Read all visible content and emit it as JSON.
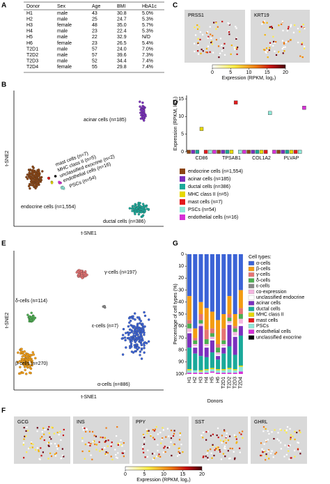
{
  "panel_labels": [
    "A",
    "B",
    "C",
    "D",
    "E",
    "F",
    "G"
  ],
  "table": {
    "header": [
      "Donor",
      "Sex",
      "Age",
      "BMI",
      "HbA1c"
    ],
    "rows": [
      {
        "cells": [
          "H1",
          "male",
          "43",
          "30.8",
          "5.0%"
        ],
        "color": "#000000"
      },
      {
        "cells": [
          "H2",
          "male",
          "25",
          "24.7",
          "5.3%"
        ],
        "color": "#000000"
      },
      {
        "cells": [
          "H3",
          "female",
          "48",
          "35.0",
          "5.7%"
        ],
        "color": "#000000"
      },
      {
        "cells": [
          "H4",
          "male",
          "23",
          "22.4",
          "5.3%"
        ],
        "color": "#000000"
      },
      {
        "cells": [
          "H5",
          "male",
          "22",
          "32.9",
          "N/D"
        ],
        "color": "#000000"
      },
      {
        "cells": [
          "H6",
          "female",
          "23",
          "26.5",
          "5.4%"
        ],
        "color": "#000000"
      },
      {
        "cells": [
          "T2D1",
          "male",
          "57",
          "24.0",
          "7.0%"
        ],
        "color": "#e8302a"
      },
      {
        "cells": [
          "T2D2",
          "male",
          "57",
          "39.6",
          "7.3%"
        ],
        "color": "#e8302a"
      },
      {
        "cells": [
          "T2D3",
          "male",
          "52",
          "34.4",
          "7.4%"
        ],
        "color": "#e8302a"
      },
      {
        "cells": [
          "T2D4",
          "female",
          "55",
          "29.8",
          "7.4%"
        ],
        "color": "#e8302a"
      }
    ]
  },
  "chart_data": [
    {
      "type": "embedding",
      "xlabel": "t-SNE1",
      "ylabel": "t-SNE2",
      "clusters": [
        {
          "label": "acinar cells (n=185)",
          "color": "#7b2fbe"
        },
        {
          "label": "mast cells (n=7)",
          "color": "#e31a1c"
        },
        {
          "label": "MHC class II (n=5)",
          "color": "#e6d800"
        },
        {
          "label": "unclassified exocrine (n=2)",
          "color": "#000000"
        },
        {
          "label": "endothelial cells (n=16)",
          "color": "#d62fd6"
        },
        {
          "label": "PSCs (n=54)",
          "color": "#8fe8d8"
        },
        {
          "label": "endocrine cells (n=1,554)",
          "color": "#8b4513"
        },
        {
          "label": "ductal cells (n=386)",
          "color": "#1aa99a"
        }
      ]
    },
    {
      "type": "feature",
      "panels": [
        "PRSS1",
        "KRT19"
      ],
      "colorbar": {
        "label": "Expression (RPKM, log₂)",
        "lim": [
          0,
          20
        ],
        "ticks": [
          0,
          5,
          10,
          15,
          20
        ]
      }
    },
    {
      "type": "dot",
      "categories": [
        "CD86",
        "TPSAB1",
        "COL1A2",
        "PLVAP"
      ],
      "ylabel": "Expression (RPKM, log₂)",
      "ylim": [
        0,
        16
      ],
      "yticks": [
        0,
        5,
        10,
        15
      ],
      "series": [
        {
          "name": "endocrine cells (n=1,554)",
          "color": "#8b4513",
          "values": [
            0,
            0,
            0,
            0
          ]
        },
        {
          "name": "acinar cells (n=185)",
          "color": "#7b2fbe",
          "values": [
            0,
            0,
            0,
            0
          ]
        },
        {
          "name": "ductal cells (n=386)",
          "color": "#1aa99a",
          "values": [
            0,
            0,
            0,
            0
          ]
        },
        {
          "name": "MHC class II (n=5)",
          "color": "#e6d800",
          "values": [
            6.5,
            0,
            0,
            0
          ]
        },
        {
          "name": "mast cells (n=7)",
          "color": "#e31a1c",
          "values": [
            0,
            14,
            0,
            0
          ]
        },
        {
          "name": "PSCs (n=54)",
          "color": "#8fe8d8",
          "values": [
            0,
            0,
            11,
            0
          ]
        },
        {
          "name": "endothelial cells (n=16)",
          "color": "#d62fd6",
          "values": [
            0,
            0,
            0,
            12.5
          ]
        }
      ]
    },
    {
      "type": "embedding",
      "xlabel": "t-SNE1",
      "ylabel": "t-SNE2",
      "clusters": [
        {
          "label": "γ-cells (n=197)",
          "color": "#e57373"
        },
        {
          "label": "δ-cells (n=114)",
          "color": "#4caf50"
        },
        {
          "label": "ε-cells (n=7)",
          "color": "#888888"
        },
        {
          "label": "β-cells (n=270)",
          "color": "#f39c12"
        },
        {
          "label": "α-cells (n=886)",
          "color": "#3b63d6"
        }
      ]
    },
    {
      "type": "feature",
      "panels": [
        "GCG",
        "INS",
        "PPY",
        "SST",
        "GHRL"
      ],
      "colorbar": {
        "label": "Expression (RPKM, log₂)",
        "lim": [
          0,
          20
        ],
        "ticks": [
          0,
          5,
          10,
          15,
          20
        ]
      }
    },
    {
      "type": "stacked-bar",
      "categories": [
        "H1",
        "H2",
        "H3",
        "H4",
        "H5",
        "H6",
        "T2D1",
        "T2D2",
        "T2D3",
        "T2D4"
      ],
      "xlabel": "Donors",
      "ylabel": "Percentage of cell types (%)",
      "legend_title": "Cell types:",
      "ylim": [
        0,
        100
      ],
      "yticks": [
        0,
        10,
        20,
        30,
        40,
        50,
        60,
        70,
        80,
        90,
        100
      ],
      "y_inverted": true,
      "series": [
        {
          "name": "α-cells",
          "color": "#3b63d6",
          "values": [
            35,
            62,
            40,
            45,
            48,
            55,
            50,
            35,
            50,
            30
          ]
        },
        {
          "name": "β-cells",
          "color": "#f39c12",
          "values": [
            20,
            8,
            10,
            18,
            14,
            20,
            12,
            15,
            10,
            15
          ]
        },
        {
          "name": "γ-cells",
          "color": "#e57373",
          "values": [
            3,
            2,
            5,
            8,
            4,
            3,
            10,
            3,
            2,
            5
          ]
        },
        {
          "name": "δ-cells",
          "color": "#4caf50",
          "values": [
            4,
            3,
            3,
            4,
            3,
            4,
            3,
            3,
            3,
            4
          ]
        },
        {
          "name": "ε-cells",
          "color": "#888888",
          "values": [
            0,
            0,
            0,
            0,
            0,
            0,
            0,
            0,
            0,
            0
          ]
        },
        {
          "name": "co-expression",
          "color": "#f4b6e0",
          "values": [
            3,
            2,
            2,
            2,
            2,
            2,
            2,
            2,
            3,
            4
          ]
        },
        {
          "name": "unclassified endocrine",
          "color": "#ffffff",
          "values": [
            1,
            1,
            0,
            1,
            1,
            1,
            1,
            1,
            1,
            2
          ]
        },
        {
          "name": "acinar cells",
          "color": "#7b2fbe",
          "values": [
            12,
            5,
            25,
            8,
            10,
            3,
            5,
            18,
            15,
            8
          ]
        },
        {
          "name": "ductal cells",
          "color": "#1aa99a",
          "values": [
            18,
            14,
            12,
            10,
            13,
            8,
            13,
            18,
            12,
            25
          ]
        },
        {
          "name": "MHC class II",
          "color": "#e6d800",
          "values": [
            1,
            0,
            1,
            1,
            1,
            1,
            1,
            1,
            1,
            1
          ]
        },
        {
          "name": "mast cells",
          "color": "#e31a1c",
          "values": [
            0,
            0,
            0,
            0,
            0,
            0,
            0,
            0,
            0,
            0
          ]
        },
        {
          "name": "PSCs",
          "color": "#8fe8d8",
          "values": [
            2,
            2,
            1,
            2,
            2,
            2,
            2,
            3,
            2,
            4
          ]
        },
        {
          "name": "endothelial cells",
          "color": "#d62fd6",
          "values": [
            1,
            1,
            1,
            1,
            1,
            1,
            1,
            1,
            1,
            2
          ]
        },
        {
          "name": "unclassified exocrine",
          "color": "#000000",
          "values": [
            0,
            0,
            0,
            0,
            0,
            0,
            0,
            0,
            0,
            0
          ]
        }
      ]
    }
  ]
}
